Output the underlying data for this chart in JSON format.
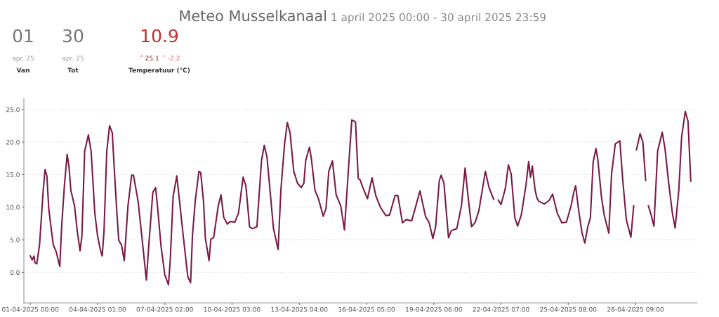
{
  "chart_data": {
    "type": "line",
    "title": "Meteo Musselkanaal",
    "subtitle": "1 april 2025 00:00 - 30 april 2025 23:59",
    "annotations": [
      "01",
      "apr. 25",
      "Van",
      "30",
      "apr. 25",
      "Tot",
      "10.9",
      "˄ 25.1",
      "˅ -2.2",
      "Temperatuur (°C)"
    ],
    "x": [
      "2025-04-01T00:00",
      "2025-04-01T02:00",
      "2025-04-01T04:00",
      "2025-04-01T05:00",
      "2025-04-01T07:00",
      "2025-04-01T10:00",
      "2025-04-01T12:00",
      "2025-04-01T14:00",
      "2025-04-01T16:00",
      "2025-04-01T18:00",
      "2025-04-01T20:00",
      "2025-04-01T23:00",
      "2025-04-02T01:00",
      "2025-04-02T04:00",
      "2025-04-02T08:00",
      "2025-04-02T10:00",
      "2025-04-02T13:00",
      "2025-04-02T16:00",
      "2025-04-02T18:00",
      "2025-04-02T20:00",
      "2025-04-03T00:00",
      "2025-04-03T03:00",
      "2025-04-03T06:00",
      "2025-04-03T08:00",
      "2025-04-03T11:00",
      "2025-04-03T15:00",
      "2025-04-03T18:00",
      "2025-04-03T22:00",
      "2025-04-04T01:00",
      "2025-04-04T04:00",
      "2025-04-04T06:00",
      "2025-04-04T08:00",
      "2025-04-04T11:00",
      "2025-04-04T14:00",
      "2025-04-04T17:00",
      "2025-04-04T19:00",
      "2025-04-04T22:00",
      "2025-04-05T00:00",
      "2025-04-05T03:00",
      "2025-04-05T06:00",
      "2025-04-05T10:00",
      "2025-04-05T14:00",
      "2025-04-05T16:00",
      "2025-04-05T21:00",
      "2025-04-06T01:00",
      "2025-04-06T06:00",
      "2025-04-06T09:00",
      "2025-04-06T13:00",
      "2025-04-06T16:00",
      "2025-04-06T18:00",
      "2025-04-06T22:00",
      "2025-04-07T02:00",
      "2025-04-07T06:00",
      "2025-04-07T08:00",
      "2025-04-07T11:00",
      "2025-04-07T15:00",
      "2025-04-07T18:00",
      "2025-04-07T22:00",
      "2025-04-08T03:00",
      "2025-04-08T06:00",
      "2025-04-08T08:00",
      "2025-04-08T11:00",
      "2025-04-08T15:00",
      "2025-04-08T17:00",
      "2025-04-08T20:00",
      "2025-04-08T22:00",
      "2025-04-09T02:00",
      "2025-04-09T04:00",
      "2025-04-09T07:00",
      "2025-04-09T12:00",
      "2025-04-09T15:00",
      "2025-04-09T18:00",
      "2025-04-09T22:00",
      "2025-04-10T01:00",
      "2025-04-10T06:00",
      "2025-04-10T10:00",
      "2025-04-10T15:00",
      "2025-04-10T18:00",
      "2025-04-10T22:00",
      "2025-04-11T01:00",
      "2025-04-11T06:00",
      "2025-04-11T11:00",
      "2025-04-11T14:00",
      "2025-04-11T17:00",
      "2025-04-12T00:00",
      "2025-04-12T05:00",
      "2025-04-12T08:00",
      "2025-04-12T12:00",
      "2025-04-12T15:00",
      "2025-04-12T18:00",
      "2025-04-12T22:00",
      "2025-04-13T02:00",
      "2025-04-13T06:00",
      "2025-04-13T09:00",
      "2025-04-13T11:00",
      "2025-04-13T15:00",
      "2025-04-13T17:00",
      "2025-04-13T21:00",
      "2025-04-14T01:00",
      "2025-04-14T06:00",
      "2025-04-14T09:00",
      "2025-04-14T12:00",
      "2025-04-14T16:00",
      "2025-04-14T20:00",
      "2025-04-15T01:00",
      "2025-04-15T05:00",
      "2025-04-15T10:00",
      "2025-04-15T13:00",
      "2025-04-15T17:00",
      "2025-04-15T20:00",
      "2025-04-15T22:00",
      "2025-04-16T01:00",
      "2025-04-16T06:00",
      "2025-04-16T11:00",
      "2025-04-16T15:00",
      "2025-04-16T20:00",
      "2025-04-17T02:00",
      "2025-04-17T06:00",
      "2025-04-17T12:00",
      "2025-04-17T15:00",
      "2025-04-17T20:00",
      "2025-04-18T00:00",
      "2025-04-18T06:00",
      "2025-04-18T15:00",
      "2025-04-18T21:00",
      "2025-04-19T01:00",
      "2025-04-19T05:00",
      "2025-04-19T08:00",
      "2025-04-19T12:00",
      "2025-04-19T14:00",
      "2025-04-19T17:00",
      "2025-04-19T22:00",
      "2025-04-20T01:00",
      "2025-04-20T07:00",
      "2025-04-20T12:00",
      "2025-04-20T16:00",
      "2025-04-20T19:00",
      "2025-04-20T23:00",
      "2025-04-21T03:00",
      "2025-04-21T07:00",
      "2025-04-21T14:00",
      "2025-04-21T18:00",
      "2025-04-21T23:00",
      "2025-04-22T01:00",
      "2025-04-22T04:00",
      "2025-04-22T07:00",
      "2025-04-22T11:00",
      "2025-04-22T12:00",
      "2025-04-22T15:00",
      "2025-04-22T18:00",
      "2025-04-22T22:00",
      "2025-04-23T01:00",
      "2025-04-23T05:00",
      "2025-04-23T10:00",
      "2025-04-23T13:00",
      "2025-04-23T15:00",
      "2025-04-23T17:00",
      "2025-04-23T20:00",
      "2025-04-23T22:00",
      "2025-04-24T00:00",
      "2025-04-24T06:00",
      "2025-04-24T11:00",
      "2025-04-24T15:00",
      "2025-04-24T20:00",
      "2025-04-25T01:00",
      "2025-04-25T06:00",
      "2025-04-25T11:00",
      "2025-04-25T14:00",
      "2025-04-25T16:00",
      "2025-04-25T19:00",
      "2025-04-25T23:00",
      "2025-04-26T02:00",
      "2025-04-26T05:00",
      "2025-04-26T08:00",
      "2025-04-26T11:00",
      "2025-04-26T14:00",
      "2025-04-26T16:00",
      "2025-04-26T20:00",
      "2025-04-26T23:00",
      "2025-04-27T04:00",
      "2025-04-27T07:00",
      "2025-04-27T11:00",
      "2025-04-27T16:00",
      "2025-04-27T19:00",
      "2025-04-27T23:00",
      "2025-04-28T04:00",
      "2025-04-28T07:00",
      "2025-04-28T08:00",
      "2025-04-28T10:00",
      "2025-04-28T14:00",
      "2025-04-28T17:00",
      "2025-04-28T20:00",
      "2025-04-28T21:00",
      "2025-04-28T23:00",
      "2025-04-29T02:00",
      "2025-04-29T05:00",
      "2025-04-29T09:00",
      "2025-04-29T14:00",
      "2025-04-29T17:00",
      "2025-04-29T21:00",
      "2025-04-30T01:00",
      "2025-04-30T04:00",
      "2025-04-30T08:00",
      "2025-04-30T11:00",
      "2025-04-30T15:00",
      "2025-04-30T18:00",
      "2025-04-30T21:00"
    ],
    "series": [
      {
        "color": "#7a1a48",
        "values": [
          2.5,
          1.9,
          2.5,
          1.5,
          1.3,
          4.2,
          8.4,
          12.6,
          15.8,
          14.8,
          9.8,
          6.3,
          4.2,
          3.2,
          0.9,
          7.0,
          13.3,
          18.1,
          16.2,
          12.6,
          10.2,
          6.3,
          3.3,
          5.6,
          18.6,
          21.1,
          18.6,
          9.1,
          5.6,
          3.5,
          2.5,
          6.3,
          18.6,
          22.5,
          21.4,
          16.2,
          9.1,
          4.9,
          4.2,
          1.8,
          10.2,
          14.9,
          14.9,
          10.9,
          5.6,
          -1.2,
          4.9,
          12.3,
          13.0,
          10.2,
          3.9,
          -0.4,
          -1.9,
          2.1,
          11.6,
          14.8,
          10.9,
          5.6,
          -0.7,
          -1.6,
          5.6,
          10.9,
          15.5,
          15.3,
          10.9,
          5.3,
          1.8,
          5.1,
          5.3,
          10.2,
          11.9,
          8.4,
          7.4,
          7.8,
          7.7,
          9.1,
          14.6,
          13.3,
          7.0,
          6.7,
          7.0,
          17.2,
          19.5,
          17.6,
          6.7,
          3.5,
          12.6,
          19.7,
          23.0,
          21.4,
          15.5,
          13.7,
          13.0,
          13.7,
          17.2,
          19.2,
          17.6,
          12.6,
          11.2,
          8.6,
          9.8,
          15.5,
          17.1,
          11.9,
          10.2,
          6.5,
          17.2,
          23.4,
          23.1,
          14.4,
          14.2,
          13.0,
          11.3,
          14.5,
          11.8,
          10.0,
          8.7,
          8.8,
          11.8,
          11.8,
          7.6,
          8.1,
          7.9,
          12.5,
          8.6,
          7.6,
          5.2,
          7.0,
          14.1,
          14.9,
          13.7,
          5.3,
          6.4,
          6.7,
          10.2,
          16.0,
          11.9,
          7.0,
          7.7,
          9.5,
          15.5,
          13.0,
          11.2,
          null,
          11.1,
          10.4,
          12.5,
          13.2,
          16.5,
          15.1,
          8.4,
          7.1,
          8.8,
          13.3,
          17.0,
          14.6,
          16.3,
          12.6,
          11.4,
          10.9,
          10.5,
          11.0,
          12.0,
          9.1,
          7.6,
          7.7,
          10.2,
          12.3,
          13.3,
          9.8,
          6.0,
          4.5,
          6.9,
          8.4,
          16.9,
          19.0,
          17.4,
          11.6,
          8.8,
          6.0,
          15.1,
          19.7,
          20.2,
          14.4,
          8.1,
          5.4,
          10.2,
          null,
          18.8,
          21.3,
          20.0,
          14.1,
          null,
          10.2,
          8.8,
          7.1,
          18.6,
          21.5,
          19.0,
          13.7,
          9.1,
          6.8,
          12.6,
          20.7,
          24.7,
          23.2,
          14.0
        ]
      }
    ],
    "xlim": [
      "2025-03-31T17:00",
      "2025-05-01T04:00"
    ],
    "xticks": [
      {
        "value": "2025-04-01T00:00",
        "label": "01-04-2025 00:00"
      },
      {
        "value": "2025-04-04T01:00",
        "label": "04-04-2025 01:00"
      },
      {
        "value": "2025-04-07T02:00",
        "label": "07-04-2025 02:00"
      },
      {
        "value": "2025-04-10T03:00",
        "label": "10-04-2025 03:00"
      },
      {
        "value": "2025-04-13T04:00",
        "label": "13-04-2025 04:00"
      },
      {
        "value": "2025-04-16T05:00",
        "label": "16-04-2025 05:00"
      },
      {
        "value": "2025-04-19T06:00",
        "label": "19-04-2025 06:00"
      },
      {
        "value": "2025-04-22T07:00",
        "label": "22-04-2025 07:00"
      },
      {
        "value": "2025-04-25T08:00",
        "label": "25-04-2025 08:00"
      },
      {
        "value": "2025-04-28T09:00",
        "label": "28-04-2025 09:00"
      }
    ],
    "ylim": [
      -4.7,
      26.7
    ],
    "yticks": [
      {
        "value": 0,
        "label": "0.0"
      },
      {
        "value": 5,
        "label": "5.0"
      },
      {
        "value": 10,
        "label": "10.0"
      },
      {
        "value": 15,
        "label": "15.0"
      },
      {
        "value": 20,
        "label": "20.0"
      },
      {
        "value": 25,
        "label": "25.0"
      }
    ],
    "grid": "y",
    "marker": "none",
    "line_style": "solid"
  }
}
